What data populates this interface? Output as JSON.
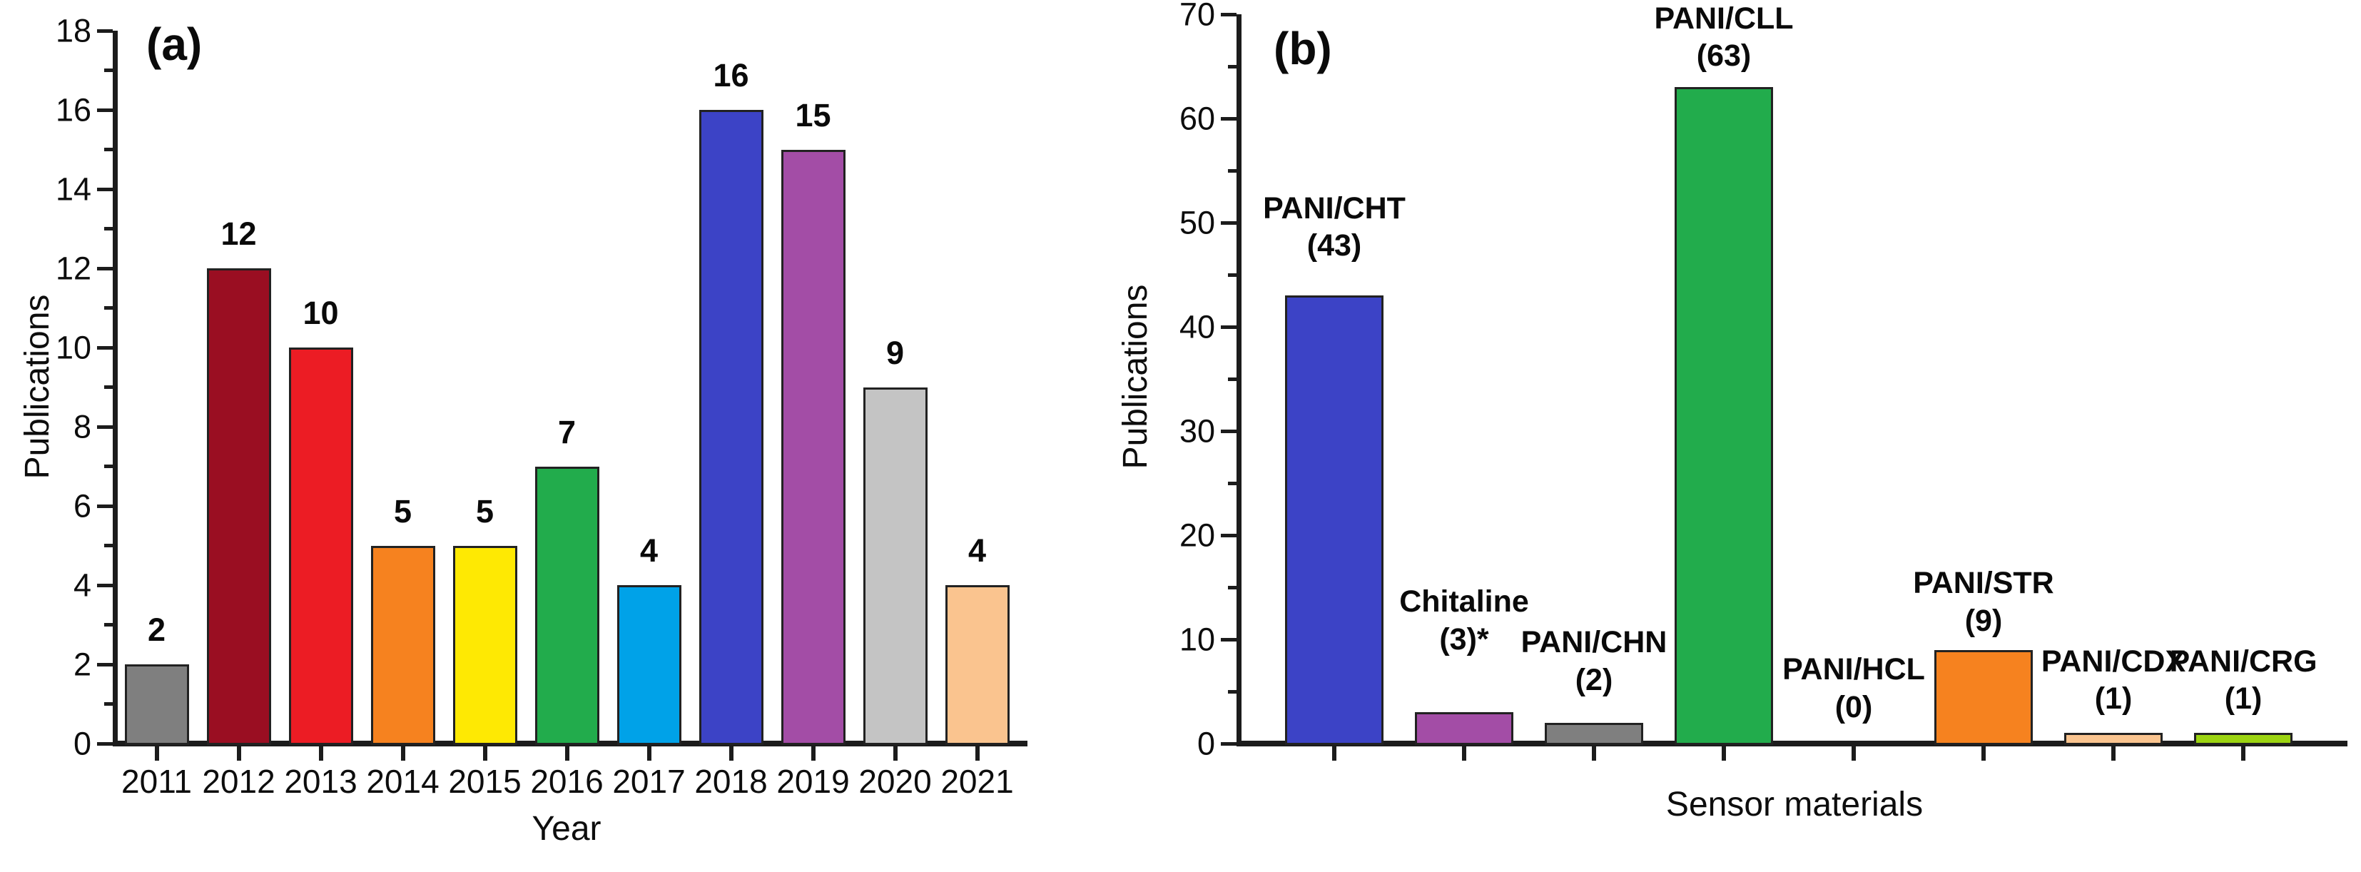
{
  "figure": {
    "background": "#FFFFFF",
    "axis_color": "#1C1C1C",
    "text_color": "#0A0A0A"
  },
  "chart_data": [
    {
      "type": "bar",
      "panel_label": "(a)",
      "title": "",
      "xlabel": "Year",
      "ylabel": "Publications",
      "ylim": [
        0,
        18
      ],
      "ytick_step": 2,
      "yminor_step": 1,
      "grid": false,
      "legend": "none",
      "ytick_labels": [
        "0",
        "2",
        "4",
        "6",
        "8",
        "10",
        "12",
        "14",
        "16",
        "18"
      ],
      "categories": [
        "2011",
        "2012",
        "2013",
        "2014",
        "2015",
        "2016",
        "2017",
        "2018",
        "2019",
        "2020",
        "2021"
      ],
      "values": [
        2,
        12,
        10,
        5,
        5,
        7,
        4,
        16,
        15,
        9,
        4
      ],
      "value_labels": [
        "2",
        "12",
        "10",
        "5",
        "5",
        "7",
        "4",
        "16",
        "15",
        "9",
        "4"
      ],
      "bar_colors": [
        "#7F7F7F",
        "#9A0E22",
        "#EC1C24",
        "#F6821F",
        "#FEE903",
        "#22AC4C",
        "#00A2E8",
        "#3C43C6",
        "#A34DA6",
        "#C4C4C4",
        "#FAC48F"
      ],
      "show_x_tick_labels": true
    },
    {
      "type": "bar",
      "panel_label": "(b)",
      "title": "",
      "xlabel": "Sensor materials",
      "ylabel": "Publications",
      "ylim": [
        0,
        70
      ],
      "ytick_step": 10,
      "yminor_step": 5,
      "grid": false,
      "legend": "none",
      "ytick_labels": [
        "0",
        "10",
        "20",
        "30",
        "40",
        "50",
        "60",
        "70"
      ],
      "categories": [
        "PANI/CHT",
        "Chitaline",
        "PANI/CHN",
        "PANI/CLL",
        "PANI/HCL",
        "PANI/STR",
        "PANI/CDX",
        "PANI/CRG"
      ],
      "values": [
        43,
        3,
        2,
        63,
        0,
        9,
        1,
        1
      ],
      "annotations": [
        [
          "PANI/CHT",
          "(43)"
        ],
        [
          "Chitaline",
          "(3)*"
        ],
        [
          "PANI/CHN",
          "(2)"
        ],
        [
          "PANI/CLL",
          "(63)"
        ],
        [
          "PANI/HCL",
          "(0)"
        ],
        [
          "PANI/STR",
          "(9)"
        ],
        [
          "PANI/CDX",
          "(1)"
        ],
        [
          "PANI/CRG",
          "(1)"
        ]
      ],
      "annotation_bottom_units": [
        46,
        8.2,
        4.3,
        64.2,
        1.7,
        10,
        2.5,
        2.5
      ],
      "bar_colors": [
        "#3C43C6",
        "#A34DA6",
        "#7F7F7F",
        "#22AC4C",
        null,
        "#F6821F",
        "#FAC48F",
        "#9CD411"
      ],
      "show_x_tick_labels": false
    }
  ]
}
